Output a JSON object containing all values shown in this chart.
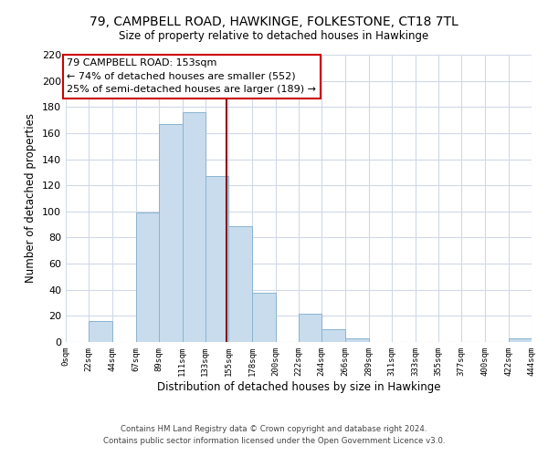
{
  "title": "79, CAMPBELL ROAD, HAWKINGE, FOLKESTONE, CT18 7TL",
  "subtitle": "Size of property relative to detached houses in Hawkinge",
  "xlabel": "Distribution of detached houses by size in Hawkinge",
  "ylabel": "Number of detached properties",
  "bar_color": "#c8dced",
  "bar_edge_color": "#8ab4d0",
  "bin_edges": [
    0,
    22,
    44,
    67,
    89,
    111,
    133,
    155,
    178,
    200,
    222,
    244,
    266,
    289,
    311,
    333,
    355,
    377,
    400,
    422,
    444
  ],
  "bin_labels": [
    "0sqm",
    "22sqm",
    "44sqm",
    "67sqm",
    "89sqm",
    "111sqm",
    "133sqm",
    "155sqm",
    "178sqm",
    "200sqm",
    "222sqm",
    "244sqm",
    "266sqm",
    "289sqm",
    "311sqm",
    "333sqm",
    "355sqm",
    "377sqm",
    "400sqm",
    "422sqm",
    "444sqm"
  ],
  "counts": [
    0,
    16,
    0,
    99,
    167,
    176,
    127,
    89,
    38,
    0,
    22,
    10,
    3,
    0,
    0,
    0,
    0,
    0,
    0,
    3
  ],
  "ylim": [
    0,
    220
  ],
  "yticks": [
    0,
    20,
    40,
    60,
    80,
    100,
    120,
    140,
    160,
    180,
    200,
    220
  ],
  "property_line_x": 153,
  "annotation_title": "79 CAMPBELL ROAD: 153sqm",
  "annotation_line1": "← 74% of detached houses are smaller (552)",
  "annotation_line2": "25% of semi-detached houses are larger (189) →",
  "footer_line1": "Contains HM Land Registry data © Crown copyright and database right 2024.",
  "footer_line2": "Contains public sector information licensed under the Open Government Licence v3.0.",
  "background_color": "#ffffff",
  "grid_color": "#d0d8e8",
  "vline_color": "#8b0000"
}
